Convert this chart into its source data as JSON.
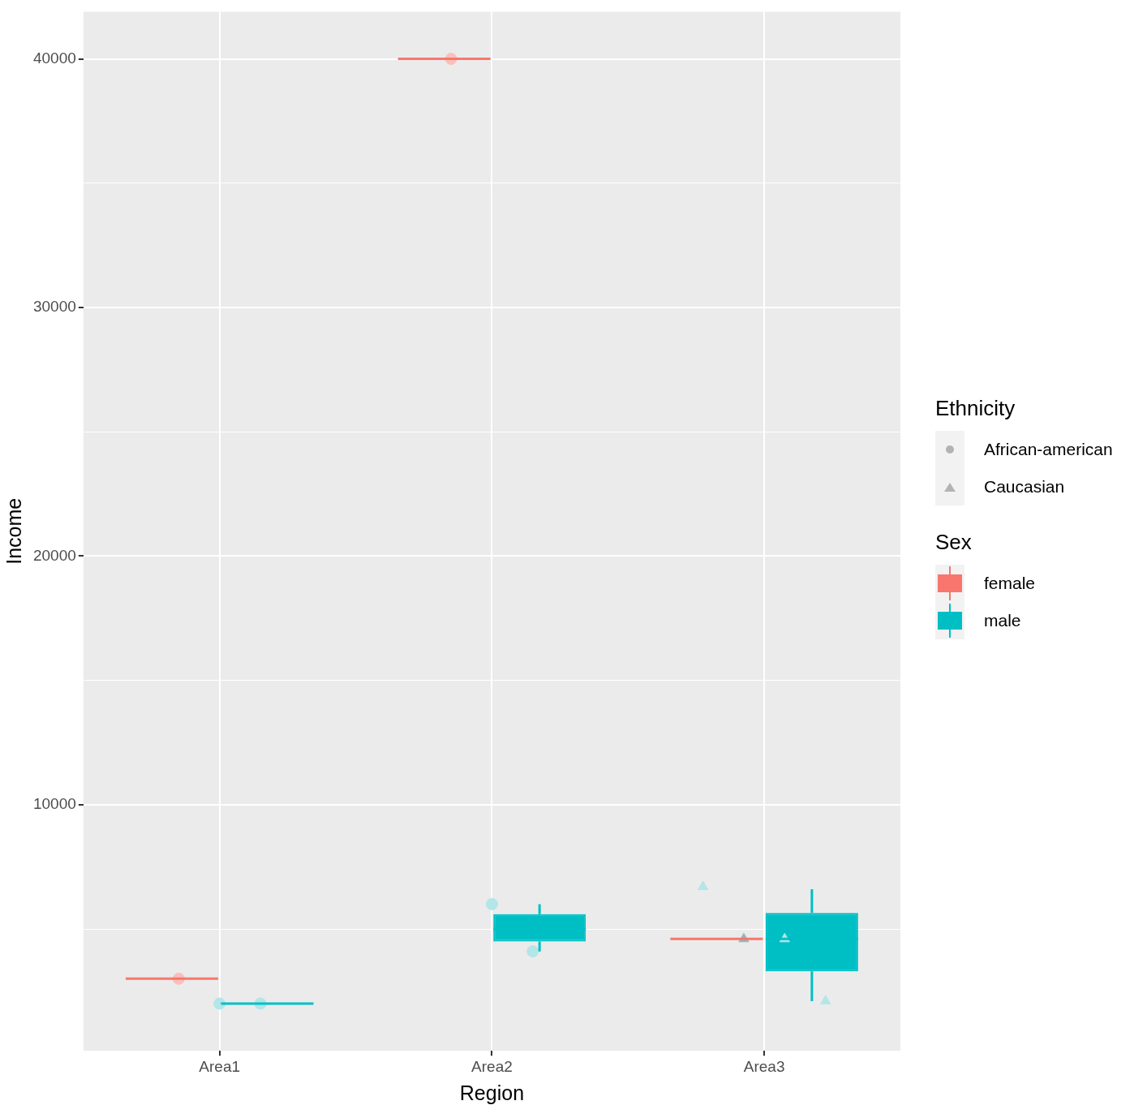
{
  "chart_data": {
    "type": "box",
    "xlabel": "Region",
    "ylabel": "Income",
    "categories": [
      "Area1",
      "Area2",
      "Area3"
    ],
    "ylim": [
      100,
      41900
    ],
    "yticks": [
      {
        "value": 5000,
        "label": null
      },
      10000,
      {
        "value": 15000,
        "label": null
      },
      20000,
      {
        "value": 25000,
        "label": null
      },
      30000,
      {
        "value": 35000,
        "label": null
      },
      40000
    ],
    "grid": true,
    "legend": "right",
    "legend_title": "Ethnicity",
    "annotations": [
      "African-american",
      "Caucasian",
      "Sex"
    ],
    "series": [
      {
        "name": "female",
        "color": "#f8766d",
        "boxes": [
          {
            "low": 3000,
            "q1": 3000,
            "median": 3000,
            "q3": 3000,
            "high": 3000
          },
          {
            "low": 40000,
            "q1": 40000,
            "median": 40000,
            "q3": 40000,
            "high": 40000
          },
          {
            "low": 4600,
            "q1": 4600,
            "median": 4600,
            "q3": 4600,
            "high": 4600
          }
        ]
      },
      {
        "name": "male",
        "color": "#00bfc4",
        "boxes": [
          {
            "low": 2000,
            "q1": 2000,
            "median": 2000,
            "q3": 2000,
            "high": 2000
          },
          {
            "low": 4100,
            "q1": 4500,
            "median": 5000,
            "q3": 5600,
            "high": 6000
          },
          {
            "low": 2100,
            "q1": 3300,
            "median": 4600,
            "q3": 5650,
            "high": 6600
          }
        ]
      },
      {
        "type": "scatter",
        "marker": "circle",
        "x": [
          "Area1",
          "Area1",
          "Area1",
          "Area2",
          "Area2",
          "Area2"
        ],
        "values": [
          3000,
          2000,
          2000,
          40000,
          6000,
          4100
        ],
        "colors": [
          "#f9c0bb",
          "#b2e6e8",
          "#b2e6e8",
          "#f9c0bb",
          "#b2e6e8",
          "#b2e6e8"
        ]
      },
      {
        "type": "scatter",
        "marker": "triangle",
        "x": [
          "Area3",
          "Area3",
          "Area3",
          "Area3"
        ],
        "values": [
          6700,
          4600,
          4600,
          2100
        ],
        "colors": [
          "#b2e6e8",
          "#8fb8ba",
          "#b2e6e8",
          "#b2e6e8"
        ]
      }
    ]
  }
}
